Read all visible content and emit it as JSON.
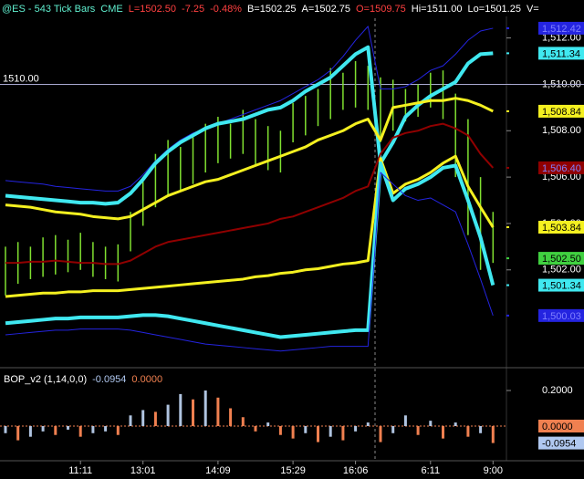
{
  "header": [
    {
      "text": "@ES - 543 Tick Bars",
      "color": "#60f0d0"
    },
    {
      "text": "CME",
      "color": "#60f0d0"
    },
    {
      "text": "L=1502.50",
      "color": "#ff4040"
    },
    {
      "text": "-7.25",
      "color": "#ff4040"
    },
    {
      "text": "-0.48%",
      "color": "#ff4040"
    },
    {
      "text": "B=1502.25",
      "color": "#ffffff"
    },
    {
      "text": "A=1502.75",
      "color": "#ffffff"
    },
    {
      "text": "O=1509.75",
      "color": "#ff4040"
    },
    {
      "text": "Hi=1511.00",
      "color": "#ffffff"
    },
    {
      "text": "Lo=1501.25",
      "color": "#ffffff"
    },
    {
      "text": "V=",
      "color": "#ffffff"
    }
  ],
  "chart_data": [
    {
      "type": "ohlc",
      "bar_color": "#80e030",
      "high": [
        1503.0,
        1503.2,
        1503.0,
        1503.4,
        1503.5,
        1503.3,
        1503.6,
        1503.2,
        1503.0,
        1503.1,
        1504.5,
        1506.0,
        1507.0,
        1507.6,
        1507.3,
        1507.8,
        1508.3,
        1508.6,
        1508.3,
        1508.9,
        1508.5,
        1508.2,
        1508.0,
        1509.2,
        1509.5,
        1509.8,
        1510.7,
        1510.5,
        1511.0,
        1510.8,
        1510.3,
        1510.2,
        1509.8,
        1510.0,
        1510.5,
        1510.6,
        1509.6,
        1508.5,
        1506.0,
        1504.5
      ],
      "low": [
        1500.9,
        1501.4,
        1501.6,
        1501.7,
        1501.8,
        1501.9,
        1502.0,
        1501.7,
        1501.6,
        1501.5,
        1502.8,
        1503.9,
        1504.7,
        1505.2,
        1505.4,
        1505.7,
        1506.2,
        1506.6,
        1506.8,
        1507.0,
        1506.5,
        1506.3,
        1506.2,
        1507.5,
        1507.8,
        1508.2,
        1508.5,
        1508.9,
        1509.0,
        1508.9,
        1507.5,
        1508.0,
        1508.4,
        1508.6,
        1509.0,
        1508.5,
        1506.0,
        1503.5,
        1502.0,
        1502.3
      ],
      "series": [
        {
          "color": "#2424e0",
          "width": 1,
          "last_label": "1,512.42",
          "values": [
            1505.85,
            1505.8,
            1505.75,
            1505.7,
            1505.6,
            1505.55,
            1505.5,
            1505.45,
            1505.4,
            1505.4,
            1505.6,
            1506.1,
            1506.7,
            1507.2,
            1507.6,
            1507.9,
            1508.1,
            1508.3,
            1508.5,
            1508.7,
            1508.9,
            1509.1,
            1509.3,
            1509.6,
            1509.9,
            1510.2,
            1510.6,
            1511.2,
            1511.9,
            1512.5,
            1509.8,
            1509.8,
            1509.9,
            1510.2,
            1510.6,
            1510.8,
            1511.3,
            1511.9,
            1512.3,
            1512.42
          ]
        },
        {
          "color": "#40e8f0",
          "width": 4,
          "last_label": "1,511.34",
          "values": [
            1505.2,
            1505.15,
            1505.1,
            1505.05,
            1505.0,
            1504.95,
            1504.9,
            1504.9,
            1504.85,
            1504.9,
            1505.3,
            1505.9,
            1506.6,
            1507.1,
            1507.5,
            1507.8,
            1508.1,
            1508.3,
            1508.4,
            1508.5,
            1508.7,
            1508.9,
            1509.0,
            1509.3,
            1509.7,
            1510.0,
            1510.3,
            1510.8,
            1511.3,
            1511.6,
            1506.6,
            1507.5,
            1508.6,
            1509.1,
            1509.5,
            1509.8,
            1510.1,
            1510.9,
            1511.3,
            1511.34
          ]
        },
        {
          "color": "#f4f020",
          "width": 3,
          "last_label": "1,508.84",
          "values": [
            1504.8,
            1504.75,
            1504.7,
            1504.6,
            1504.5,
            1504.45,
            1504.4,
            1504.3,
            1504.25,
            1504.2,
            1504.3,
            1504.6,
            1504.9,
            1505.2,
            1505.4,
            1505.6,
            1505.8,
            1505.9,
            1506.1,
            1506.3,
            1506.5,
            1506.7,
            1506.9,
            1507.1,
            1507.3,
            1507.6,
            1507.8,
            1508.0,
            1508.3,
            1508.5,
            1507.6,
            1509.0,
            1509.1,
            1509.2,
            1509.3,
            1509.3,
            1509.4,
            1509.3,
            1509.1,
            1508.84
          ]
        },
        {
          "color": "#900000",
          "width": 2,
          "last_label": "1,506.40",
          "values": [
            1502.3,
            1502.3,
            1502.35,
            1502.35,
            1502.4,
            1502.35,
            1502.3,
            1502.3,
            1502.25,
            1502.25,
            1502.4,
            1502.7,
            1503.0,
            1503.2,
            1503.3,
            1503.4,
            1503.5,
            1503.6,
            1503.7,
            1503.8,
            1503.9,
            1504.0,
            1504.2,
            1504.3,
            1504.5,
            1504.7,
            1504.9,
            1505.1,
            1505.4,
            1505.6,
            1507.0,
            1507.7,
            1507.9,
            1508.0,
            1508.2,
            1508.3,
            1508.1,
            1507.8,
            1507.0,
            1506.4
          ]
        },
        {
          "color": "#f4f020",
          "width": 3,
          "last_label": "1,503.84",
          "values": [
            1500.85,
            1500.9,
            1500.95,
            1501.0,
            1501.0,
            1501.05,
            1501.05,
            1501.1,
            1501.1,
            1501.1,
            1501.15,
            1501.2,
            1501.25,
            1501.3,
            1501.35,
            1501.4,
            1501.45,
            1501.5,
            1501.55,
            1501.6,
            1501.7,
            1501.75,
            1501.85,
            1501.9,
            1502.0,
            1502.05,
            1502.15,
            1502.25,
            1502.3,
            1502.4,
            1506.8,
            1505.3,
            1505.7,
            1505.9,
            1506.2,
            1506.6,
            1506.9,
            1505.6,
            1504.7,
            1503.84
          ]
        },
        {
          "color": "#40e8f0",
          "width": 4,
          "last_label": "1,501.34",
          "values": [
            1499.7,
            1499.75,
            1499.8,
            1499.85,
            1499.9,
            1499.9,
            1499.95,
            1499.95,
            1499.95,
            1499.95,
            1500.0,
            1500.05,
            1500.05,
            1500.0,
            1499.9,
            1499.8,
            1499.7,
            1499.6,
            1499.5,
            1499.4,
            1499.3,
            1499.2,
            1499.1,
            1499.15,
            1499.2,
            1499.25,
            1499.3,
            1499.35,
            1499.4,
            1499.4,
            1506.6,
            1505.0,
            1505.5,
            1505.7,
            1506.0,
            1506.4,
            1506.5,
            1505.0,
            1503.4,
            1501.34
          ]
        },
        {
          "color": "#2424e0",
          "width": 1,
          "last_label": "1,500.03",
          "values": [
            1499.2,
            1499.25,
            1499.3,
            1499.35,
            1499.4,
            1499.4,
            1499.45,
            1499.45,
            1499.45,
            1499.45,
            1499.4,
            1499.3,
            1499.2,
            1499.1,
            1499.0,
            1498.9,
            1498.8,
            1498.75,
            1498.7,
            1498.65,
            1498.6,
            1498.55,
            1498.5,
            1498.55,
            1498.6,
            1498.65,
            1498.7,
            1498.7,
            1498.7,
            1498.7,
            1506.2,
            1505.7,
            1505.2,
            1505.0,
            1505.1,
            1504.8,
            1504.5,
            1503.1,
            1501.6,
            1500.03
          ]
        }
      ],
      "ylim": [
        1497.9,
        1512.85
      ],
      "yticks": [
        {
          "value": 1502,
          "label": "1,502.00"
        },
        {
          "value": 1504,
          "label": "1,504.00"
        },
        {
          "value": 1506,
          "label": "1,506.00"
        },
        {
          "value": 1508,
          "label": "1,508.00"
        },
        {
          "value": 1510,
          "label": "1,510.00"
        },
        {
          "value": 1512,
          "label": "1,512.00"
        }
      ],
      "hline": {
        "value": 1510,
        "label": "1510.00"
      },
      "last": {
        "value": 1502.5,
        "label": "1,502.50",
        "color": "#40d040"
      }
    },
    {
      "type": "column",
      "title": "BOP_v2 (1,14,0,0)",
      "readouts": [
        {
          "value": -0.0954,
          "label": "-0.0954",
          "color": "#b0c8f0"
        },
        {
          "value": 0,
          "label": "0.0000",
          "color": "#f08050"
        }
      ],
      "up_color": "#b0c4e0",
      "down_color": "#f08050",
      "categories": [
        null,
        null,
        null,
        null,
        null,
        null,
        "11:11",
        null,
        null,
        null,
        null,
        "13:01",
        null,
        null,
        null,
        null,
        null,
        "14:09",
        null,
        null,
        null,
        null,
        null,
        "15:29",
        null,
        null,
        null,
        null,
        "16:06",
        null,
        null,
        null,
        null,
        null,
        "6:11",
        null,
        null,
        null,
        null,
        "9:00"
      ],
      "values": [
        -0.04,
        -0.08,
        -0.06,
        -0.03,
        -0.05,
        -0.02,
        -0.06,
        -0.04,
        -0.03,
        -0.05,
        0.06,
        0.09,
        0.08,
        0.12,
        0.18,
        0.15,
        0.2,
        0.16,
        0.1,
        0.05,
        -0.03,
        0.02,
        -0.05,
        -0.07,
        -0.04,
        -0.09,
        -0.06,
        -0.08,
        -0.03,
        0.02,
        -0.09,
        -0.04,
        0.06,
        -0.05,
        0.03,
        -0.07,
        0.02,
        -0.06,
        -0.04,
        -0.0954
      ],
      "ylim": [
        -0.195,
        0.318
      ],
      "yticks": [
        {
          "value": 0.2,
          "label": "0.2000"
        }
      ]
    }
  ]
}
